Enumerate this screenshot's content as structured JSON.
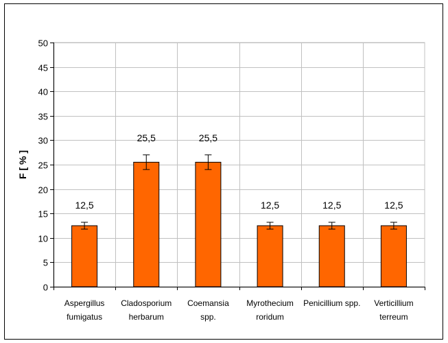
{
  "chart_data": {
    "type": "bar",
    "categories": [
      [
        "Aspergillus",
        "fumigatus"
      ],
      [
        "Cladosporium",
        "herbarum"
      ],
      [
        "Coemansia",
        "spp."
      ],
      [
        "Myrothecium",
        "roridum"
      ],
      [
        "Penicillium spp."
      ],
      [
        "Verticillium",
        "terreum"
      ]
    ],
    "values": [
      12.5,
      25.5,
      25.5,
      12.5,
      12.5,
      12.5
    ],
    "data_labels": [
      "12,5",
      "25,5",
      "25,5",
      "12,5",
      "12,5",
      "12,5"
    ],
    "error_bars": [
      0.7,
      1.5,
      1.5,
      0.7,
      0.7,
      0.7
    ],
    "xlabel": "",
    "ylabel": "F  [ % ]",
    "ylim": [
      0,
      50
    ],
    "yticks": [
      0,
      5,
      10,
      15,
      20,
      25,
      30,
      35,
      40,
      45,
      50
    ],
    "grid": true,
    "legend": "none",
    "colors": {
      "bar_fill": "#ff6600",
      "bar_stroke": "#000000",
      "grid": "#c0c0c0",
      "axis": "#000000"
    }
  }
}
